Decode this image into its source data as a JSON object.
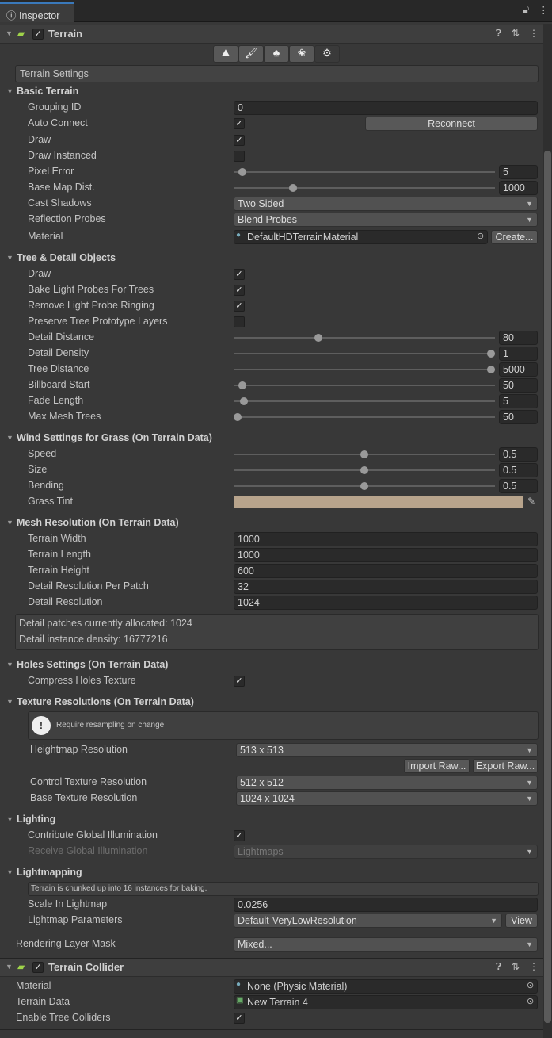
{
  "window": {
    "tab": "Inspector",
    "tab_icon": "info-icon",
    "lock_icon": "lock-icon",
    "menu_icon": "kebab-menu-icon"
  },
  "terrain": {
    "title": "Terrain",
    "enabled": true,
    "toolbar": [
      "raise-terrain-icon",
      "paint-brush-icon",
      "trees-icon",
      "details-icon",
      "settings-gear-icon"
    ],
    "active_tool": 4,
    "settings_label": "Terrain Settings"
  },
  "sections": [
    {
      "title": "Basic Terrain",
      "props": [
        {
          "label": "Grouping ID",
          "type": "text",
          "value": "0"
        },
        {
          "label": "Auto Connect",
          "type": "check",
          "checked": true,
          "button": "Reconnect"
        },
        {
          "label": "Draw",
          "type": "check",
          "checked": true
        },
        {
          "label": "Draw Instanced",
          "type": "check",
          "checked": false
        },
        {
          "label": "Pixel Error",
          "type": "slider",
          "value": "5",
          "fraction": 0.02
        },
        {
          "label": "Base Map Dist.",
          "type": "slider",
          "value": "1000",
          "fraction": 0.22
        },
        {
          "label": "Cast Shadows",
          "type": "dropdown",
          "value": "Two Sided"
        },
        {
          "label": "Reflection Probes",
          "type": "dropdown",
          "value": "Blend Probes"
        },
        {
          "label": "Material",
          "type": "object",
          "value": "DefaultHDTerrainMaterial",
          "button": "Create..."
        }
      ]
    },
    {
      "title": "Tree & Detail Objects",
      "props": [
        {
          "label": "Draw",
          "type": "check",
          "checked": true
        },
        {
          "label": "Bake Light Probes For Trees",
          "type": "check",
          "checked": true
        },
        {
          "label": "Remove Light Probe Ringing",
          "type": "check",
          "checked": true
        },
        {
          "label": "Preserve Tree Prototype Layers",
          "type": "check",
          "checked": false
        },
        {
          "label": "Detail Distance",
          "type": "slider",
          "value": "80",
          "fraction": 0.32
        },
        {
          "label": "Detail Density",
          "type": "slider",
          "value": "1",
          "fraction": 1
        },
        {
          "label": "Tree Distance",
          "type": "slider",
          "value": "5000",
          "fraction": 1
        },
        {
          "label": "Billboard Start",
          "type": "slider",
          "value": "50",
          "fraction": 0.02
        },
        {
          "label": "Fade Length",
          "type": "slider",
          "value": "5",
          "fraction": 0.025
        },
        {
          "label": "Max Mesh Trees",
          "type": "slider",
          "value": "50",
          "fraction": 0
        }
      ]
    },
    {
      "title": "Wind Settings for Grass (On Terrain Data)",
      "props": [
        {
          "label": "Speed",
          "type": "slider",
          "value": "0.5",
          "fraction": 0.5
        },
        {
          "label": "Size",
          "type": "slider",
          "value": "0.5",
          "fraction": 0.5
        },
        {
          "label": "Bending",
          "type": "slider",
          "value": "0.5",
          "fraction": 0.5
        },
        {
          "label": "Grass Tint",
          "type": "color",
          "color": "#b8a48c"
        }
      ]
    },
    {
      "title": "Mesh Resolution (On Terrain Data)",
      "props": [
        {
          "label": "Terrain Width",
          "type": "text",
          "value": "1000"
        },
        {
          "label": "Terrain Length",
          "type": "text",
          "value": "1000"
        },
        {
          "label": "Terrain Height",
          "type": "text",
          "value": "600"
        },
        {
          "label": "Detail Resolution Per Patch",
          "type": "text",
          "value": "32"
        },
        {
          "label": "Detail Resolution",
          "type": "text",
          "value": "1024"
        },
        {
          "type": "info",
          "lines": [
            "Detail patches currently allocated: 1024",
            "Detail instance density: 16777216"
          ]
        }
      ]
    },
    {
      "title": "Holes Settings (On Terrain Data)",
      "props": [
        {
          "label": "Compress Holes Texture",
          "type": "check",
          "checked": true
        }
      ]
    },
    {
      "title": "Texture Resolutions (On Terrain Data)",
      "props": [
        {
          "type": "helpbox",
          "text": "Require resampling on change"
        },
        {
          "label": "Heightmap Resolution",
          "type": "dropdown",
          "value": "513 x 513",
          "indent": true
        },
        {
          "type": "buttons",
          "buttons": [
            "Import Raw...",
            "Export Raw..."
          ]
        },
        {
          "label": "Control Texture Resolution",
          "type": "dropdown",
          "value": "512 x 512",
          "indent": true
        },
        {
          "label": "Base Texture Resolution",
          "type": "dropdown",
          "value": "1024 x 1024",
          "indent": true
        }
      ]
    },
    {
      "title": "Lighting",
      "props": [
        {
          "label": "Contribute Global Illumination",
          "type": "check",
          "checked": true
        },
        {
          "label": "Receive Global Illumination",
          "type": "dropdown",
          "value": "Lightmaps",
          "disabled": true
        }
      ]
    },
    {
      "title": "Lightmapping",
      "props": [
        {
          "type": "note",
          "text": "Terrain is chunked up into 16 instances for baking."
        },
        {
          "label": "Scale In Lightmap",
          "type": "text",
          "value": "0.0256"
        },
        {
          "label": "Lightmap Parameters",
          "type": "dropdown",
          "value": "Default-VeryLowResolution",
          "button": "View"
        },
        {
          "label": "Rendering Layer Mask",
          "type": "dropdown",
          "value": "Mixed...",
          "outer": true
        }
      ]
    }
  ],
  "collider": {
    "title": "Terrain Collider",
    "enabled": true,
    "props": [
      {
        "label": "Material",
        "type": "object",
        "value": "None (Physic Material)",
        "outer": true
      },
      {
        "label": "Terrain Data",
        "type": "object",
        "value": "New Terrain 4",
        "outer": true,
        "asset": true
      },
      {
        "label": "Enable Tree Colliders",
        "type": "check",
        "checked": true,
        "outer": true
      }
    ]
  }
}
